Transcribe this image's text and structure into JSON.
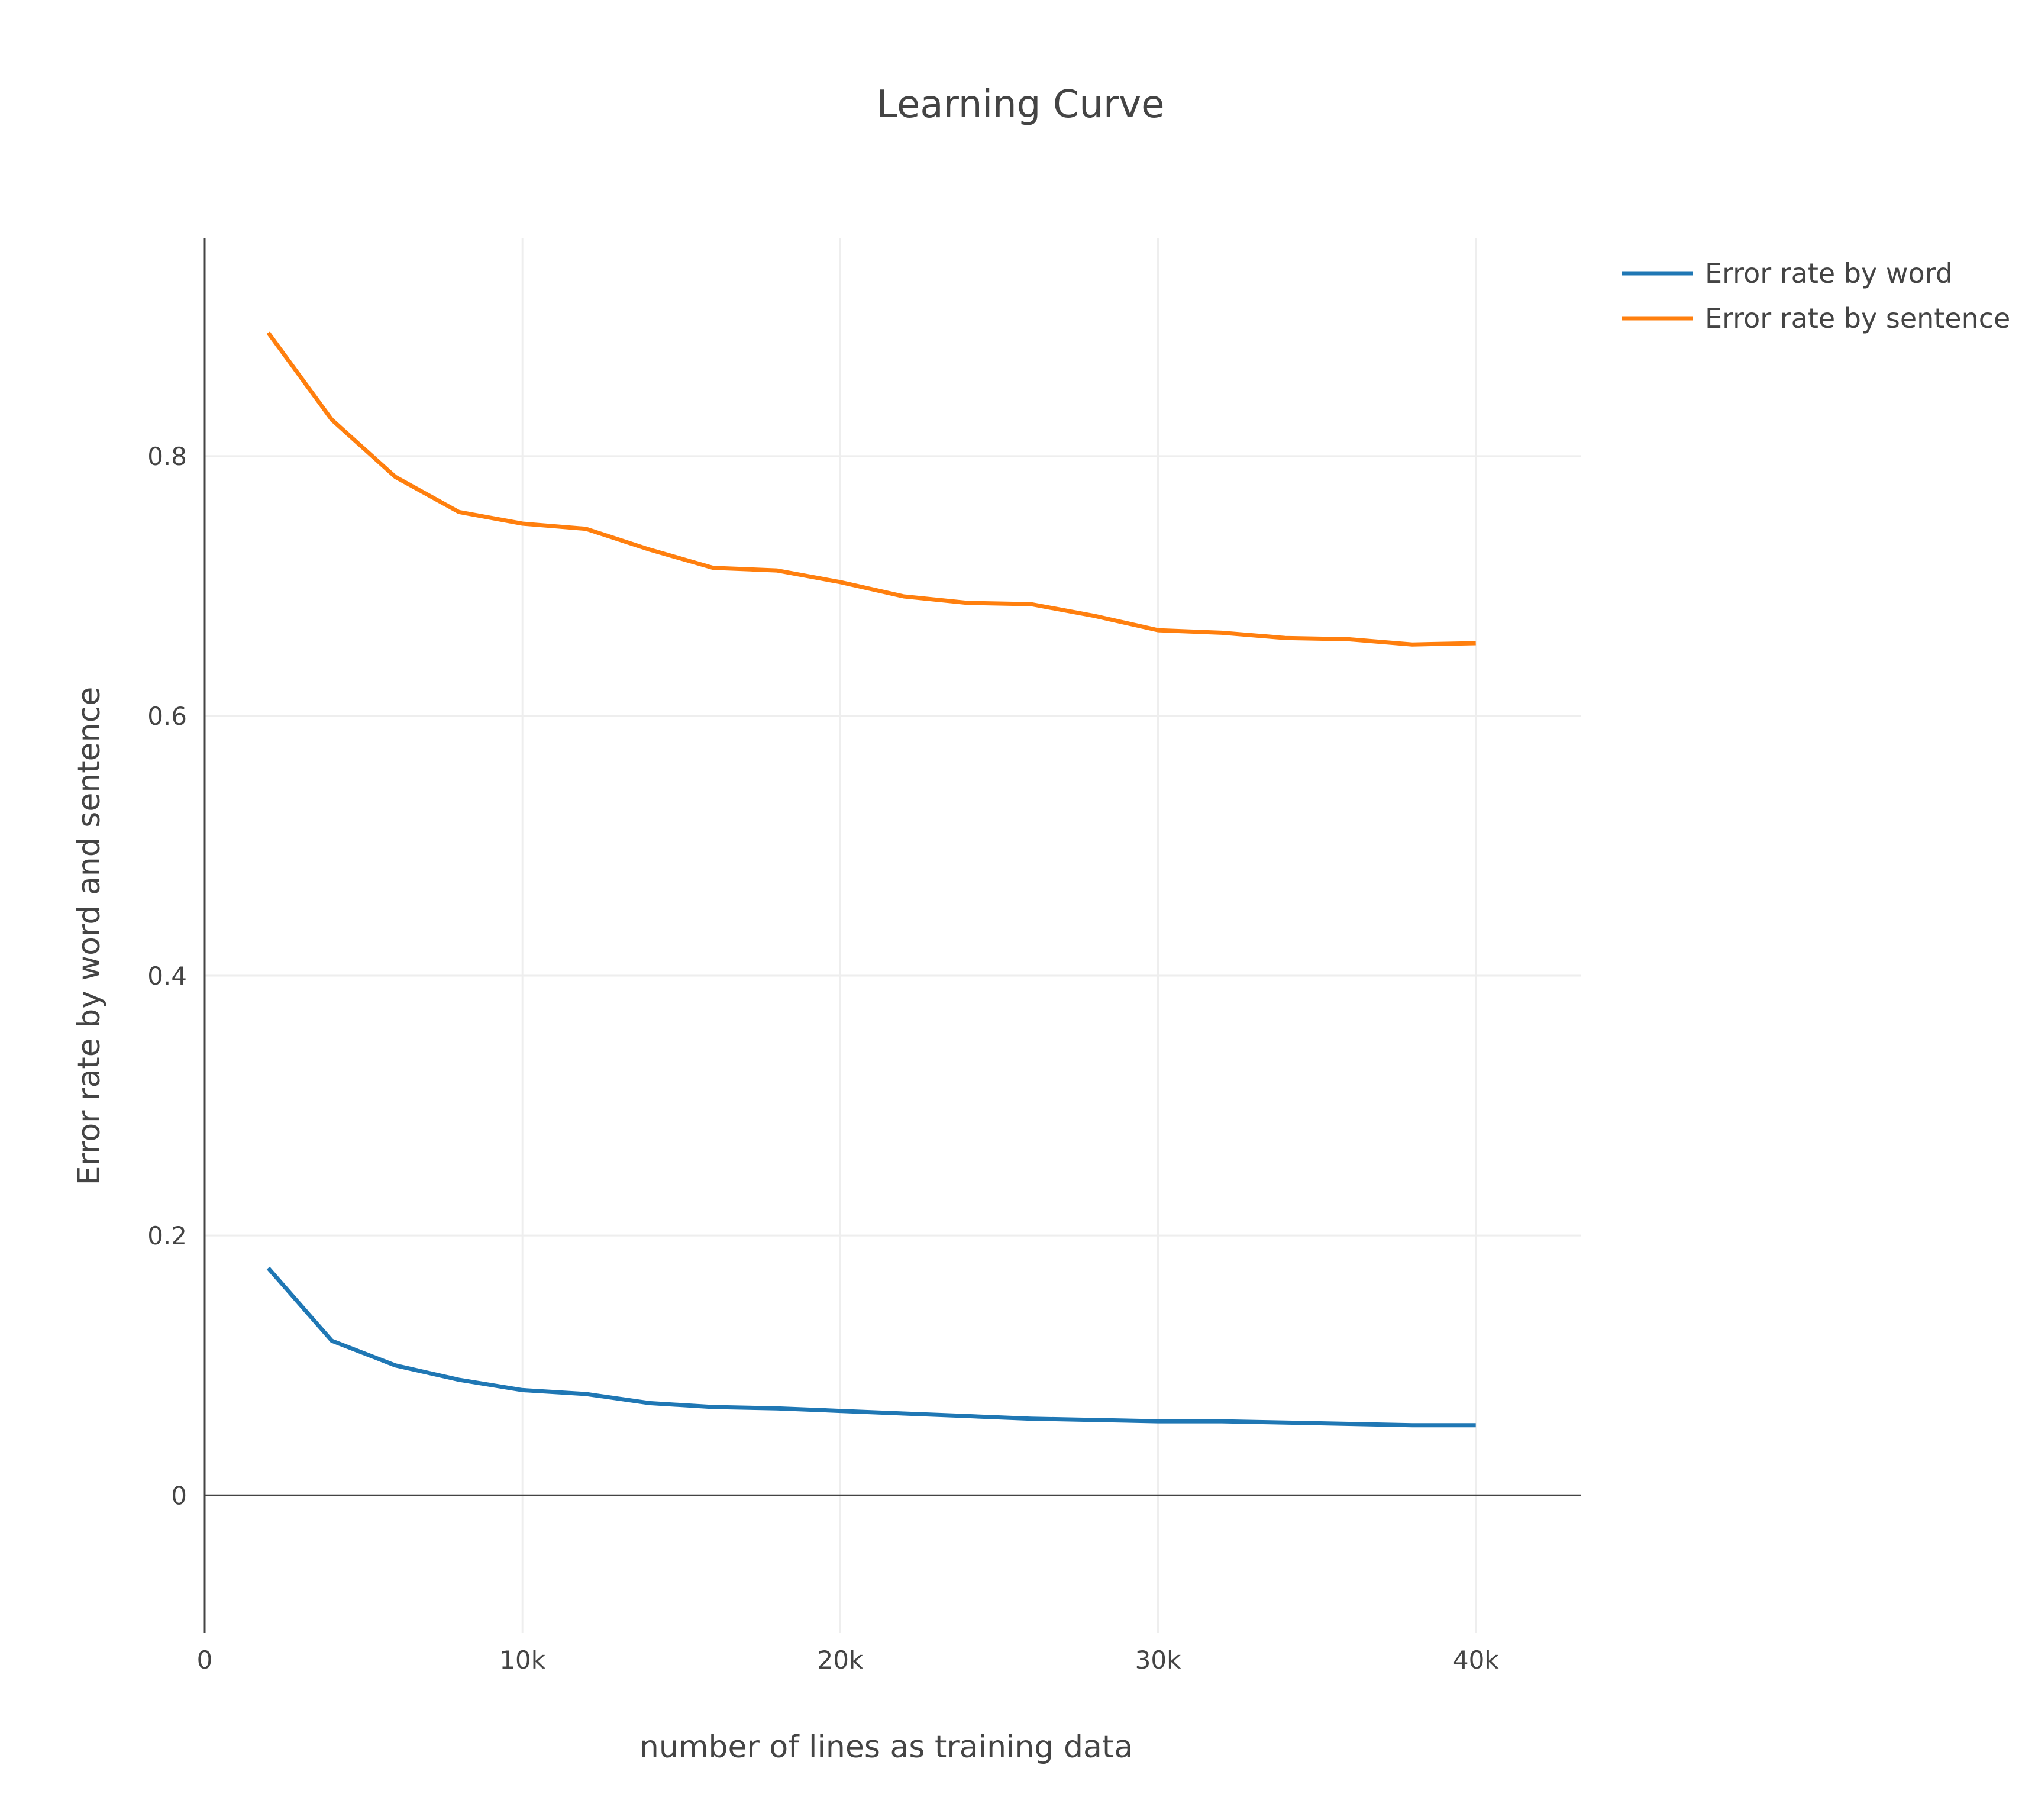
{
  "chart_data": {
    "type": "line",
    "title": "Learning Curve",
    "xlabel": "number of lines as training data",
    "ylabel": "Error rate by word and sentence",
    "xlim": [
      0,
      43300
    ],
    "ylim": [
      -0.106,
      0.968
    ],
    "x_ticks": [
      {
        "value": 0,
        "label": "0"
      },
      {
        "value": 10000,
        "label": "10k"
      },
      {
        "value": 20000,
        "label": "20k"
      },
      {
        "value": 30000,
        "label": "30k"
      },
      {
        "value": 40000,
        "label": "40k"
      }
    ],
    "y_ticks": [
      {
        "value": 0,
        "label": "0"
      },
      {
        "value": 0.2,
        "label": "0.2"
      },
      {
        "value": 0.4,
        "label": "0.4"
      },
      {
        "value": 0.6,
        "label": "0.6"
      },
      {
        "value": 0.8,
        "label": "0.8"
      }
    ],
    "grid": true,
    "legend_position": "top-right",
    "x": [
      2000,
      4000,
      6000,
      8000,
      10000,
      12000,
      14000,
      16000,
      18000,
      20000,
      22000,
      24000,
      26000,
      28000,
      30000,
      32000,
      34000,
      36000,
      38000,
      40000
    ],
    "series": [
      {
        "name": "Error rate by word",
        "color": "#1f77b4",
        "values": [
          0.175,
          0.119,
          0.1,
          0.089,
          0.081,
          0.078,
          0.071,
          0.068,
          0.067,
          0.065,
          0.063,
          0.061,
          0.059,
          0.058,
          0.057,
          0.057,
          0.056,
          0.055,
          0.054,
          0.054
        ]
      },
      {
        "name": "Error rate by sentence",
        "color": "#ff7f0e",
        "values": [
          0.895,
          0.828,
          0.784,
          0.757,
          0.748,
          0.744,
          0.728,
          0.714,
          0.712,
          0.703,
          0.692,
          0.687,
          0.686,
          0.677,
          0.666,
          0.664,
          0.66,
          0.659,
          0.655,
          0.656
        ]
      }
    ]
  }
}
